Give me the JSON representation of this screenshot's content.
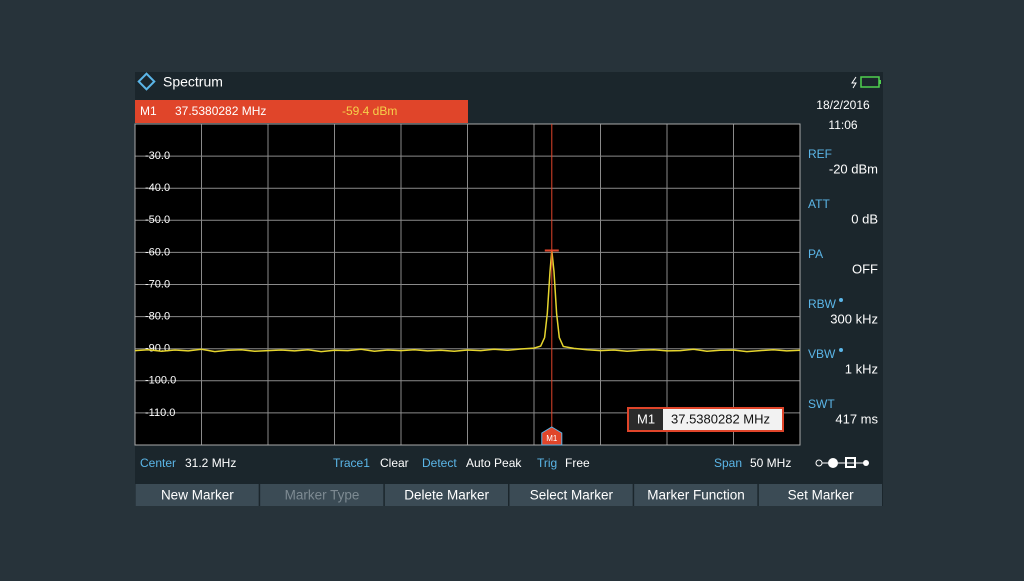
{
  "header": {
    "title": "Spectrum"
  },
  "status": {
    "date": "18/2/2016",
    "time": "11:06"
  },
  "settings": [
    {
      "label": "REF",
      "value": "-20 dBm"
    },
    {
      "label": "ATT",
      "value": "0 dB"
    },
    {
      "label": "PA",
      "value": "OFF"
    },
    {
      "label": "RBW",
      "value": "300 kHz"
    },
    {
      "label": "VBW",
      "value": "1 kHz"
    },
    {
      "label": "SWT",
      "value": "417 ms"
    }
  ],
  "chart_data": {
    "type": "line",
    "color": "#e6d52e",
    "grid": true,
    "marker": {
      "name": "M1",
      "color": "#e0452a",
      "frequency": {
        "value": 37.5380282,
        "label": "37.5380282 MHz"
      },
      "level": {
        "value": -59.4,
        "label": "-59.4 dBm"
      }
    },
    "xlim": [
      6.2,
      56.2
    ],
    "xticks": [
      6.2,
      11.2,
      16.2,
      21.2,
      26.2,
      31.2,
      36.2,
      41.2,
      46.2,
      51.2,
      56.2
    ],
    "ylim": [
      -120,
      -20
    ],
    "yticks": [
      {
        "value": -30,
        "label": "-30.0"
      },
      {
        "value": -40,
        "label": "-40.0"
      },
      {
        "value": -50,
        "label": "-50.0"
      },
      {
        "value": -60,
        "label": "-60.0"
      },
      {
        "value": -70,
        "label": "-70.0"
      },
      {
        "value": -80,
        "label": "-80.0"
      },
      {
        "value": -90,
        "label": "-90.0"
      },
      {
        "value": -100,
        "label": "-100.0"
      },
      {
        "value": -110,
        "label": "-110.0"
      }
    ],
    "x": [
      6.2,
      7.2,
      8.2,
      9.2,
      10.2,
      11.2,
      12.2,
      13.2,
      14.2,
      15.2,
      16.2,
      17.2,
      18.2,
      19.2,
      20.2,
      21.2,
      22.2,
      23.2,
      24.2,
      25.2,
      26.2,
      27.2,
      28.2,
      29.2,
      30.2,
      31.2,
      32.2,
      33.2,
      34.2,
      35.2,
      36.2,
      36.7,
      37.0,
      37.2,
      37.4,
      37.538,
      37.7,
      37.9,
      38.1,
      38.4,
      39.2,
      40.2,
      41.2,
      42.2,
      43.2,
      44.2,
      45.2,
      46.2,
      47.2,
      48.2,
      49.2,
      50.2,
      51.2,
      52.2,
      53.2,
      54.2,
      55.2,
      56.2
    ],
    "values": [
      -90.6,
      -90.3,
      -90.8,
      -90.4,
      -90.7,
      -90.2,
      -90.9,
      -90.5,
      -90.3,
      -90.8,
      -90.6,
      -90.4,
      -90.7,
      -90.3,
      -90.9,
      -90.5,
      -90.6,
      -90.2,
      -90.8,
      -90.4,
      -90.6,
      -90.3,
      -90.7,
      -90.5,
      -90.8,
      -90.4,
      -90.6,
      -90.2,
      -90.5,
      -90.1,
      -89.8,
      -89.2,
      -86.5,
      -79,
      -66,
      -59.4,
      -66,
      -79,
      -86.5,
      -89.3,
      -89.9,
      -90.3,
      -90.6,
      -90.4,
      -90.8,
      -90.5,
      -90.3,
      -90.7,
      -90.6,
      -90.2,
      -90.8,
      -90.5,
      -90.4,
      -90.9,
      -90.6,
      -90.3,
      -90.7,
      -90.5
    ]
  },
  "footer": {
    "center_label": "Center",
    "center": "31.2 MHz",
    "trace_label": "Trace1",
    "trace": "Clear",
    "detect_label": "Detect",
    "detect": "Auto Peak",
    "trig_label": "Trig",
    "trig": "Free",
    "span_label": "Span",
    "span": "50 MHz"
  },
  "softkeys": [
    "New Marker",
    "Marker Type",
    "Delete Marker",
    "Select Marker",
    "Marker Function",
    "Set Marker"
  ]
}
